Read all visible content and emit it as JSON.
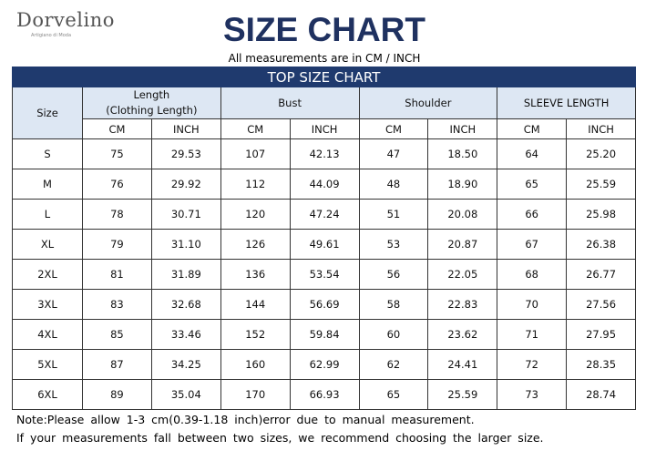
{
  "logo": {
    "name": "Dorvelino",
    "tagline": "Artigiano di Moda"
  },
  "header": {
    "title": "SIZE CHART",
    "subtitle": "All measurements are in CM / INCH"
  },
  "table": {
    "title": "TOP SIZE CHART",
    "headers": [
      [
        "Size"
      ],
      [
        "Length",
        "(Clothing Length)"
      ],
      [
        "Bust"
      ],
      [
        "Shoulder"
      ],
      [
        "SLEEVE LENGTH"
      ]
    ],
    "units": [
      "CM",
      "INCH",
      "CM",
      "INCH",
      "CM",
      "INCH",
      "CM",
      "INCH"
    ],
    "rows": [
      [
        "S",
        "75",
        "29.53",
        "107",
        "42.13",
        "47",
        "18.50",
        "64",
        "25.20"
      ],
      [
        "M",
        "76",
        "29.92",
        "112",
        "44.09",
        "48",
        "18.90",
        "65",
        "25.59"
      ],
      [
        "L",
        "78",
        "30.71",
        "120",
        "47.24",
        "51",
        "20.08",
        "66",
        "25.98"
      ],
      [
        "XL",
        "79",
        "31.10",
        "126",
        "49.61",
        "53",
        "20.87",
        "67",
        "26.38"
      ],
      [
        "2XL",
        "81",
        "31.89",
        "136",
        "53.54",
        "56",
        "22.05",
        "68",
        "26.77"
      ],
      [
        "3XL",
        "83",
        "32.68",
        "144",
        "56.69",
        "58",
        "22.83",
        "70",
        "27.56"
      ],
      [
        "4XL",
        "85",
        "33.46",
        "152",
        "59.84",
        "60",
        "23.62",
        "71",
        "27.95"
      ],
      [
        "5XL",
        "87",
        "34.25",
        "160",
        "62.99",
        "62",
        "24.41",
        "72",
        "28.35"
      ],
      [
        "6XL",
        "89",
        "35.04",
        "170",
        "66.93",
        "65",
        "25.59",
        "73",
        "28.74"
      ]
    ]
  },
  "notes": [
    "Note:Please allow 1-3 cm(0.39-1.18 inch)error due to manual measurement.",
    "If your measurements fall between two sizes, we recommend choosing the larger size."
  ]
}
